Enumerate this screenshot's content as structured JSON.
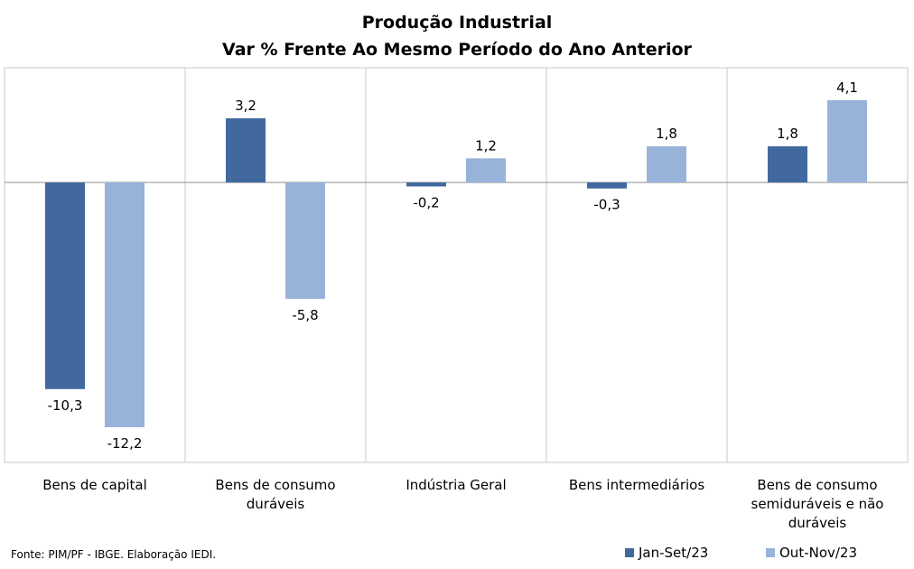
{
  "chart_data": {
    "type": "bar",
    "title": [
      "Produção Industrial",
      "Var % Frente Ao Mesmo Período do Ano Anterior"
    ],
    "categories": [
      [
        "Bens de capital"
      ],
      [
        "Bens de consumo",
        "duráveis"
      ],
      [
        "Indústria Geral"
      ],
      [
        "Bens intermediários"
      ],
      [
        "Bens de consumo",
        "semiduráveis e não",
        "duráveis"
      ]
    ],
    "series": [
      {
        "name": "Jan-Set/23",
        "color": "#41699F",
        "values": [
          -10.3,
          3.2,
          -0.2,
          -0.3,
          1.8
        ],
        "labels": [
          "-10,3",
          "3,2",
          "-0,2",
          "-0,3",
          "1,8"
        ]
      },
      {
        "name": "Out-Nov/23",
        "color": "#97B3D9",
        "values": [
          -12.2,
          -5.8,
          1.2,
          1.8,
          4.1
        ],
        "labels": [
          "-12,2",
          "-5,8",
          "1,2",
          "1,8",
          "4,1"
        ]
      }
    ],
    "ylim": [
      -14,
      5.5
    ],
    "grid": false,
    "legend_position": "bottom-right",
    "source": "Fonte: PIM/PF - IBGE. Elaboração IEDI."
  }
}
